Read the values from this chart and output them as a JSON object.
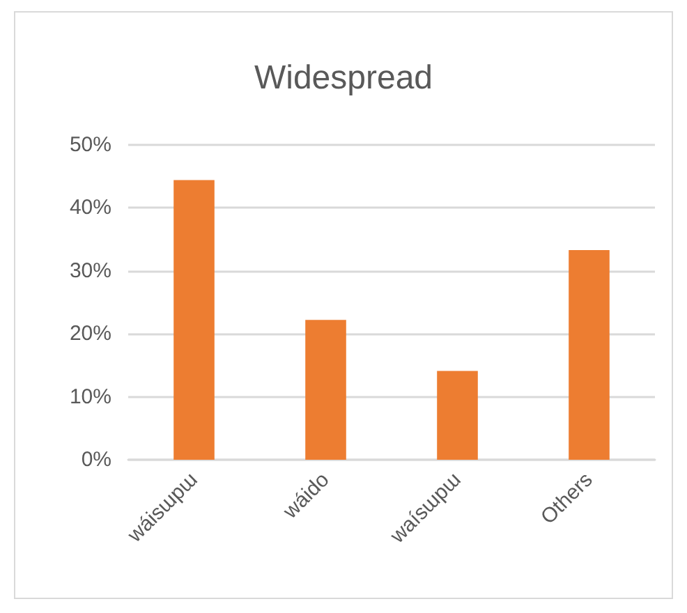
{
  "chart_data": {
    "type": "bar",
    "title": "Widespread",
    "categories": [
      "wáisɯpɯ",
      "wáido",
      "waísɯpɯ",
      "Others"
    ],
    "values": [
      44.4,
      22.2,
      14.1,
      33.3
    ],
    "color": "#ed7d31",
    "ylim": [
      0,
      50
    ],
    "yticks": [
      {
        "value": 0,
        "label": "0%"
      },
      {
        "value": 10,
        "label": "10%"
      },
      {
        "value": 20,
        "label": "20%"
      },
      {
        "value": 30,
        "label": "30%"
      },
      {
        "value": 40,
        "label": "40%"
      },
      {
        "value": 50,
        "label": "50%"
      }
    ],
    "grid": "y"
  }
}
